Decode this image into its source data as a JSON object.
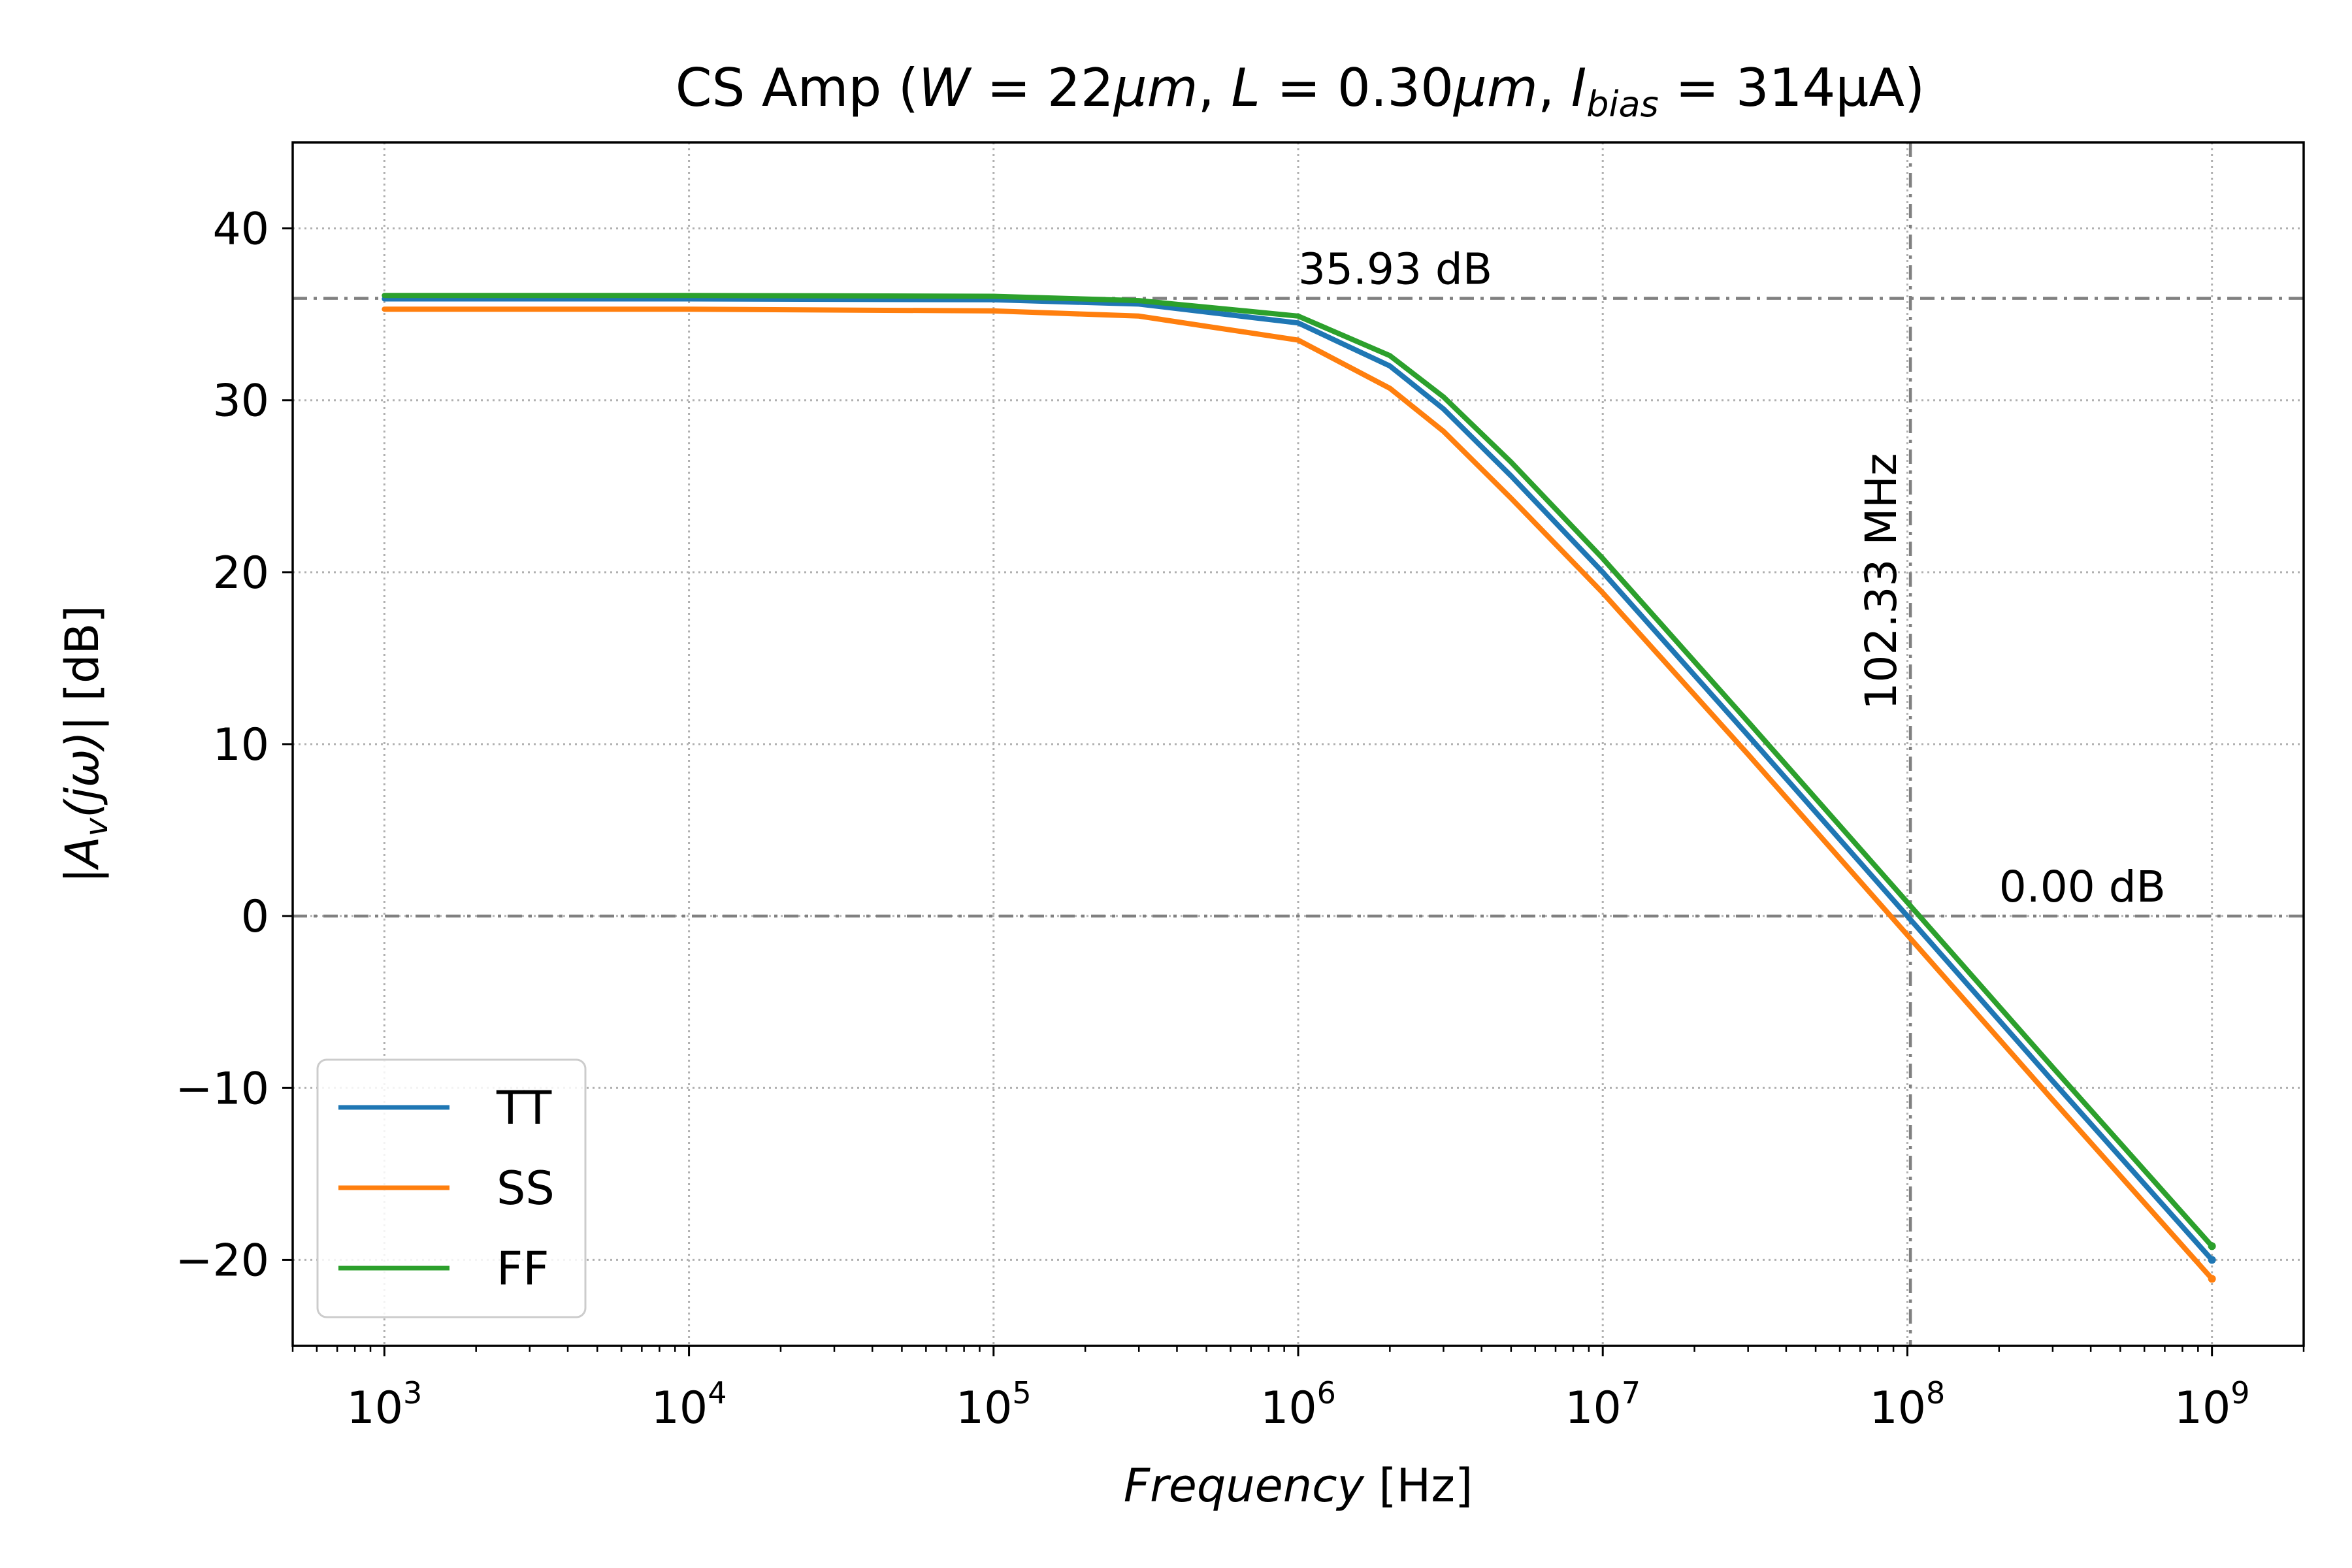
{
  "chart_data": {
    "type": "line",
    "title": {
      "prefix": "CS Amp (",
      "w_var": "W",
      "w_value": " = 22",
      "w_unit": "μm",
      "l_var": "L",
      "l_value": " = 0.30",
      "l_unit": "μm",
      "i_var": "I",
      "i_sub": "bias",
      "i_value": " = 314μA)"
    },
    "xlabel": {
      "italic": "Frequency",
      "unit": " [Hz]"
    },
    "ylabel": {
      "pre": "|",
      "italic": "A",
      "sub": "v",
      "arg": "(jω)",
      "post": "| [dB]"
    },
    "xscale": "log",
    "xlim": [
      500,
      2000000000
    ],
    "ylim": [
      -25,
      45
    ],
    "xticks": [
      {
        "value": 1000,
        "base": "10",
        "exp": "3"
      },
      {
        "value": 10000,
        "base": "10",
        "exp": "4"
      },
      {
        "value": 100000,
        "base": "10",
        "exp": "5"
      },
      {
        "value": 1000000,
        "base": "10",
        "exp": "6"
      },
      {
        "value": 10000000,
        "base": "10",
        "exp": "7"
      },
      {
        "value": 100000000,
        "base": "10",
        "exp": "8"
      },
      {
        "value": 1000000000,
        "base": "10",
        "exp": "9"
      }
    ],
    "yticks": [
      {
        "value": 40,
        "label": "40"
      },
      {
        "value": 30,
        "label": "30"
      },
      {
        "value": 20,
        "label": "20"
      },
      {
        "value": 10,
        "label": "10"
      },
      {
        "value": 0,
        "label": "0"
      },
      {
        "value": -10,
        "label": "−10"
      },
      {
        "value": -20,
        "label": "−20"
      }
    ],
    "grid": true,
    "legend_position": "bottom-left",
    "series": [
      {
        "name": "TT",
        "color": "#1f77b4",
        "x": [
          1000,
          10000,
          100000,
          300000,
          1000000,
          2000000,
          3000000,
          5000000,
          10000000,
          30000000,
          100000000,
          300000000,
          1000000000
        ],
        "y": [
          35.9,
          35.9,
          35.85,
          35.6,
          34.5,
          32.0,
          29.5,
          25.6,
          20.0,
          10.5,
          0.0,
          -9.6,
          -20.0
        ]
      },
      {
        "name": "SS",
        "color": "#ff7f0e",
        "x": [
          1000,
          10000,
          100000,
          300000,
          1000000,
          2000000,
          3000000,
          5000000,
          10000000,
          30000000,
          100000000,
          300000000,
          1000000000
        ],
        "y": [
          35.3,
          35.3,
          35.2,
          34.9,
          33.5,
          30.7,
          28.2,
          24.3,
          18.8,
          9.4,
          -1.1,
          -10.7,
          -21.1
        ]
      },
      {
        "name": "FF",
        "color": "#2ca02c",
        "x": [
          1000,
          10000,
          100000,
          300000,
          1000000,
          2000000,
          3000000,
          5000000,
          10000000,
          30000000,
          100000000,
          300000000,
          1000000000
        ],
        "y": [
          36.1,
          36.1,
          36.05,
          35.8,
          34.9,
          32.6,
          30.2,
          26.4,
          20.8,
          11.3,
          0.8,
          -8.8,
          -19.2
        ]
      }
    ],
    "reference_lines": {
      "dc_gain": {
        "value": 35.93,
        "label": "35.93 dB",
        "label_x": 1000000
      },
      "unity_gain": {
        "value": 0,
        "label": "0.00 dB",
        "label_x": 200000000
      },
      "unity_freq": {
        "value": 102330000,
        "label": "102.33 MHz"
      }
    },
    "colors": {
      "reference": "#808080",
      "grid": "#b0b0b0",
      "axes": "#000000"
    }
  }
}
